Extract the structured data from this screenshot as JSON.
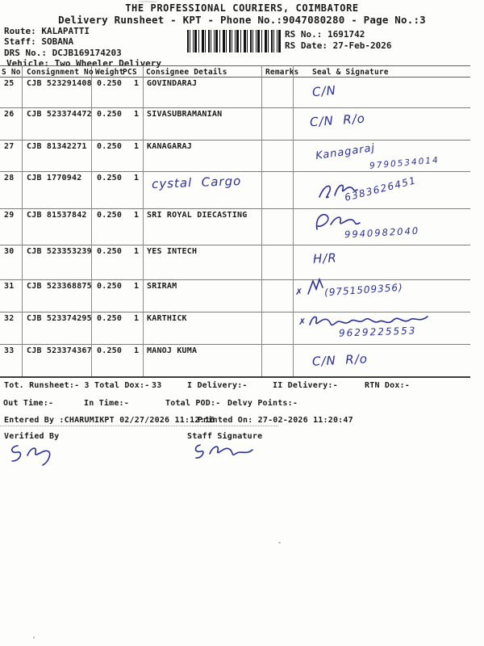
{
  "header": {
    "title": "THE PROFESSIONAL COURIERS, COIMBATORE",
    "subtitle": "Delivery Runsheet - KPT - Phone No.:9047080280 - Page No.:3",
    "route": "Route: KALAPATTI",
    "staff": "Staff: SOBANA",
    "drs_no": "DRS No.: DCJB169174203",
    "vehicle": "Vehicle: Two Wheeler Delivery",
    "rs_no": "RS No.: 1691742",
    "rs_date": "RS Date: 27-Feb-2026",
    "barcode_icon": "barcode"
  },
  "table": {
    "columns": {
      "sno": "S No",
      "consignment": "Consignment No",
      "weight": "Weight",
      "pcs": "PCS",
      "consignee": "Consignee Details",
      "remarks": "Remarks",
      "seal": "Seal & Signature"
    },
    "rows": [
      {
        "sno": "25",
        "consignment": "CJB 523291408",
        "weight": "0.250",
        "pcs": "1",
        "consignee": "GOVINDARAJ",
        "remarks": "",
        "seal_text": "C/N",
        "seal_phone": ""
      },
      {
        "sno": "26",
        "consignment": "CJB 523374472",
        "weight": "0.250",
        "pcs": "1",
        "consignee": "SIVASUBRAMANIAN",
        "remarks": "",
        "seal_text": "C/N  R/o",
        "seal_phone": ""
      },
      {
        "sno": "27",
        "consignment": "CJB 81342271",
        "weight": "0.250",
        "pcs": "1",
        "consignee": "KANAGARAJ",
        "remarks": "",
        "seal_text": "Kanagaraj",
        "seal_phone": "9790534014"
      },
      {
        "sno": "28",
        "consignment": "CJB 1770942",
        "weight": "0.250",
        "pcs": "1",
        "consignee": "",
        "consignee_handwritten": "cystal  Cargo",
        "remarks": "",
        "seal_text": "",
        "seal_phone": "6383626451"
      },
      {
        "sno": "29",
        "consignment": "CJB 81537842",
        "weight": "0.250",
        "pcs": "1",
        "consignee": "SRI ROYAL DIECASTING",
        "remarks": "",
        "seal_text": "",
        "seal_phone": "9940982040"
      },
      {
        "sno": "30",
        "consignment": "CJB 523353239",
        "weight": "0.250",
        "pcs": "1",
        "consignee": "YES INTECH",
        "remarks": "",
        "seal_text": "H/R",
        "seal_phone": ""
      },
      {
        "sno": "31",
        "consignment": "CJB 523368875",
        "weight": "0.250",
        "pcs": "1",
        "consignee": "SRIRAM",
        "remarks": "",
        "seal_text": "(9751509356)",
        "seal_phone": ""
      },
      {
        "sno": "32",
        "consignment": "CJB 523374295",
        "weight": "0.250",
        "pcs": "1",
        "consignee": "KARTHICK",
        "remarks": "",
        "seal_text": "",
        "seal_phone": "9629225553"
      },
      {
        "sno": "33",
        "consignment": "CJB 523374367",
        "weight": "0.250",
        "pcs": "1",
        "consignee": "MANOJ KUMA",
        "remarks": "",
        "seal_text": "C/N  R/o",
        "seal_phone": ""
      }
    ]
  },
  "totals": {
    "runsheet": "Tot. Runsheet:- 3",
    "total_dox_label": "Total Dox:-",
    "total_dox_value": "33",
    "i_delivery": "I Delivery:-",
    "ii_delivery": "II Delivery:-",
    "rtn_dox": "RTN Dox:-"
  },
  "times": {
    "out_time": "Out Time:-",
    "in_time": "In Time:-",
    "total_pod": "Total POD:-",
    "delvy_points": "Delvy Points:-"
  },
  "meta": {
    "entered_by": "Entered By :CHARUMIKPT 02/27/2026 11:12:16",
    "printed_on": "Printed On: 27-02-2026 11:20:47"
  },
  "signoff": {
    "verified_label": "Verified By",
    "staff_label": "Staff Signature"
  }
}
